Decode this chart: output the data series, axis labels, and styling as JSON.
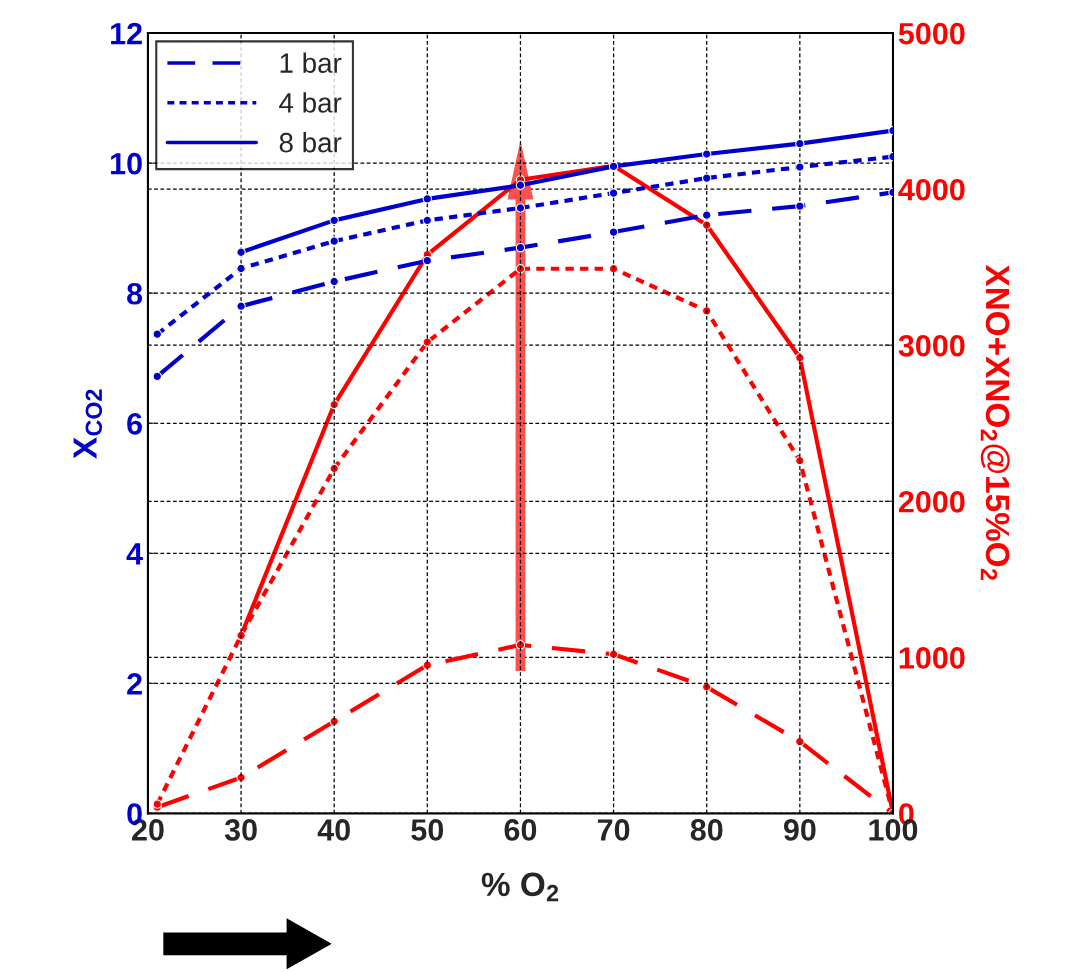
{
  "chart_data": {
    "type": "line",
    "xlabel": "% O$_{2}$",
    "ylabel": "X$_{CO2}$",
    "y2label": "XNO+XNO$_{2}$@15%O$_{2}$",
    "x": [
      21,
      30,
      40,
      50,
      60,
      70,
      80,
      90,
      100
    ],
    "xlim": [
      20,
      100
    ],
    "xticks": [
      20,
      30,
      40,
      50,
      60,
      70,
      80,
      90,
      100
    ],
    "ylim": [
      0,
      12
    ],
    "yticks": [
      0,
      2,
      4,
      6,
      8,
      10,
      12
    ],
    "y2lim": [
      0,
      5000
    ],
    "y2ticks": [
      0,
      1000,
      2000,
      3000,
      4000,
      5000
    ],
    "grid": true,
    "legend": "top left",
    "marker": "circle",
    "series": [
      {
        "name": "1 bar",
        "color": "#0000cc",
        "line_style": "dashed",
        "values": [
          6.72,
          7.8,
          8.18,
          8.5,
          8.7,
          8.94,
          9.2,
          9.34,
          9.55
        ]
      },
      {
        "name": "4 bar",
        "color": "#0000cc",
        "line_style": "dotted",
        "values": [
          7.37,
          8.38,
          8.8,
          9.12,
          9.31,
          9.54,
          9.77,
          9.94,
          10.1
        ]
      },
      {
        "name": "8 bar",
        "color": "#0000cc",
        "line_style": "solid",
        "values": [
          null,
          8.63,
          9.12,
          9.45,
          9.66,
          9.95,
          10.14,
          10.3,
          10.5
        ]
      },
      {
        "color": "#ff0000",
        "line_style": "dashed",
        "axis": "y2",
        "values": [
          40,
          230,
          590,
          950,
          1080,
          1020,
          810,
          460,
          0
        ]
      },
      {
        "color": "#ff0000",
        "line_style": "dotted",
        "axis": "y2",
        "values": [
          60,
          1140,
          2210,
          3020,
          3490,
          3490,
          3220,
          2260,
          0
        ]
      },
      {
        "color": "#ff0000",
        "line_style": "solid",
        "axis": "y2",
        "values": [
          null,
          1140,
          2620,
          3580,
          4060,
          4150,
          3770,
          2920,
          0
        ]
      }
    ]
  }
}
